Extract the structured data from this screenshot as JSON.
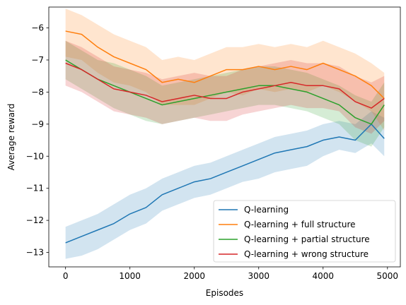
{
  "chart_data": {
    "type": "line",
    "title": "",
    "xlabel": "Episodes",
    "ylabel": "Average reward",
    "xlim": [
      -260,
      5200
    ],
    "ylim": [
      -13.45,
      -5.35
    ],
    "xticks": [
      0,
      1000,
      2000,
      3000,
      4000,
      5000
    ],
    "xtick_labels": [
      "0",
      "1000",
      "2000",
      "3000",
      "4000",
      "5000"
    ],
    "yticks": [
      -13,
      -12,
      -11,
      -10,
      -9,
      -8,
      -7,
      -6
    ],
    "ytick_labels": [
      "−13",
      "−12",
      "−11",
      "−10",
      "−9",
      "−8",
      "−7",
      "−6"
    ],
    "grid": false,
    "legend_position": "lower-right",
    "band": "shaded region around each mean line",
    "x": [
      0,
      250,
      500,
      750,
      1000,
      1250,
      1500,
      1750,
      2000,
      2250,
      2500,
      2750,
      3000,
      3250,
      3500,
      3750,
      4000,
      4250,
      4500,
      4750,
      4950
    ],
    "series": [
      {
        "name": "Q-learning",
        "color": "#1f77b4",
        "mean": [
          -12.7,
          -12.5,
          -12.3,
          -12.1,
          -11.8,
          -11.6,
          -11.2,
          -11.0,
          -10.8,
          -10.7,
          -10.5,
          -10.3,
          -10.1,
          -9.9,
          -9.8,
          -9.7,
          -9.5,
          -9.4,
          -9.5,
          -9.0,
          -9.45
        ],
        "lower": [
          -13.2,
          -13.1,
          -12.9,
          -12.6,
          -12.3,
          -12.1,
          -11.7,
          -11.5,
          -11.3,
          -11.2,
          -11.0,
          -10.8,
          -10.7,
          -10.5,
          -10.4,
          -10.3,
          -10.0,
          -9.8,
          -9.9,
          -9.6,
          -10.0
        ],
        "upper": [
          -12.2,
          -12.0,
          -11.8,
          -11.5,
          -11.2,
          -11.0,
          -10.7,
          -10.5,
          -10.3,
          -10.2,
          -10.0,
          -9.8,
          -9.6,
          -9.4,
          -9.3,
          -9.2,
          -9.0,
          -8.9,
          -9.0,
          -8.6,
          -8.8
        ]
      },
      {
        "name": "Q-learning + full structure",
        "color": "#ff7f0e",
        "mean": [
          -6.1,
          -6.2,
          -6.6,
          -6.9,
          -7.1,
          -7.3,
          -7.7,
          -7.6,
          -7.7,
          -7.5,
          -7.3,
          -7.3,
          -7.2,
          -7.3,
          -7.2,
          -7.3,
          -7.1,
          -7.3,
          -7.5,
          -7.8,
          -8.2
        ],
        "lower": [
          -6.9,
          -7.0,
          -7.4,
          -7.7,
          -7.8,
          -8.0,
          -8.4,
          -8.4,
          -8.4,
          -8.2,
          -8.0,
          -8.1,
          -7.9,
          -8.0,
          -7.9,
          -8.0,
          -7.8,
          -8.0,
          -8.3,
          -8.6,
          -9.2
        ],
        "upper": [
          -5.4,
          -5.6,
          -5.9,
          -6.2,
          -6.4,
          -6.6,
          -7.0,
          -6.9,
          -7.0,
          -6.8,
          -6.6,
          -6.6,
          -6.5,
          -6.6,
          -6.5,
          -6.6,
          -6.4,
          -6.6,
          -6.8,
          -7.1,
          -7.4
        ]
      },
      {
        "name": "Q-learning + partial structure",
        "color": "#2ca02c",
        "mean": [
          -7.0,
          -7.3,
          -7.6,
          -7.8,
          -8.0,
          -8.2,
          -8.4,
          -8.3,
          -8.2,
          -8.1,
          -8.0,
          -7.9,
          -7.8,
          -7.8,
          -7.9,
          -8.0,
          -8.2,
          -8.4,
          -8.8,
          -9.0,
          -8.4
        ],
        "lower": [
          -7.6,
          -7.9,
          -8.2,
          -8.5,
          -8.7,
          -8.9,
          -9.0,
          -8.9,
          -8.8,
          -8.7,
          -8.6,
          -8.5,
          -8.4,
          -8.4,
          -8.5,
          -8.6,
          -8.8,
          -9.0,
          -9.5,
          -9.7,
          -9.1
        ],
        "upper": [
          -6.4,
          -6.7,
          -7.0,
          -7.1,
          -7.3,
          -7.5,
          -7.8,
          -7.7,
          -7.6,
          -7.5,
          -7.4,
          -7.3,
          -7.2,
          -7.2,
          -7.3,
          -7.4,
          -7.6,
          -7.8,
          -8.1,
          -8.3,
          -7.7
        ]
      },
      {
        "name": "Q-learning + wrong structure",
        "color": "#d62728",
        "mean": [
          -7.1,
          -7.3,
          -7.6,
          -7.9,
          -8.0,
          -8.1,
          -8.3,
          -8.2,
          -8.1,
          -8.2,
          -8.2,
          -8.0,
          -7.9,
          -7.8,
          -7.7,
          -7.8,
          -7.8,
          -7.9,
          -8.3,
          -8.5,
          -8.2
        ],
        "lower": [
          -7.8,
          -8.0,
          -8.3,
          -8.6,
          -8.7,
          -8.8,
          -9.0,
          -8.9,
          -8.8,
          -8.9,
          -8.9,
          -8.7,
          -8.6,
          -8.5,
          -8.4,
          -8.5,
          -8.5,
          -8.6,
          -9.1,
          -9.3,
          -8.9
        ],
        "upper": [
          -6.4,
          -6.6,
          -6.9,
          -7.2,
          -7.3,
          -7.4,
          -7.6,
          -7.5,
          -7.4,
          -7.5,
          -7.5,
          -7.3,
          -7.2,
          -7.1,
          -7.0,
          -7.1,
          -7.1,
          -7.2,
          -7.5,
          -7.7,
          -7.5
        ]
      }
    ]
  }
}
